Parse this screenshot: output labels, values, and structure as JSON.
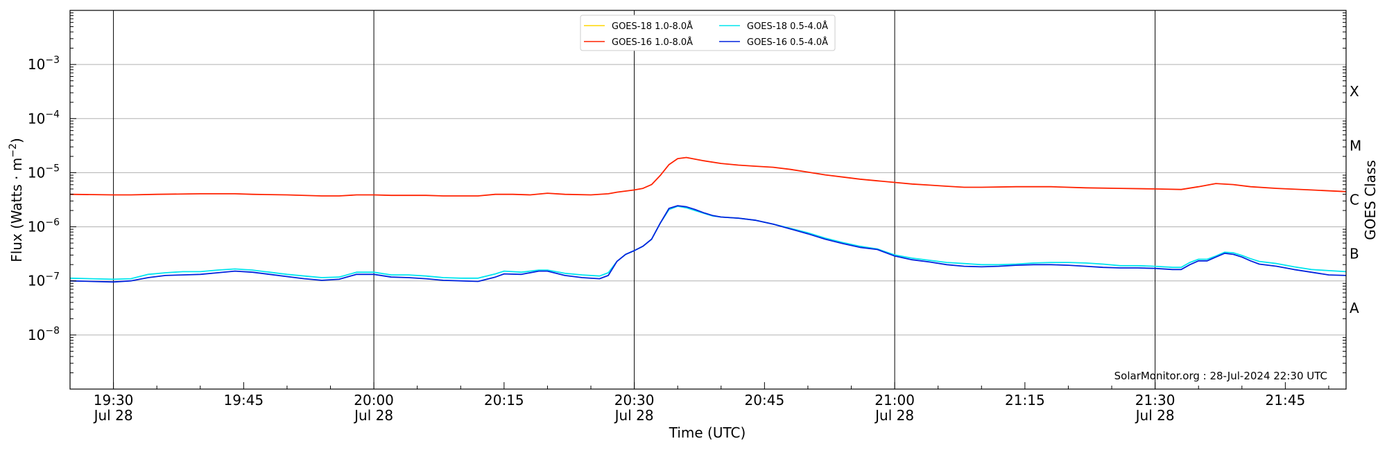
{
  "chart_data": {
    "type": "line",
    "xlabel": "Time (UTC)",
    "ylabel_main": "Flux (Watts · m",
    "ylabel_exp": "−2",
    "ylabel_close": ")",
    "right_label": "GOES Class",
    "annotation": "SolarMonitor.org : 28-Jul-2024 22:30 UTC",
    "x_range_minutes": [
      1165,
      1312
    ],
    "y_log_range": [
      -9,
      -2
    ],
    "log_scale": true,
    "grid": "horizontal at each decade, vertical at each half hour",
    "legend_placement": "top-center",
    "y_ticks": [
      {
        "exp": -8,
        "base": "10",
        "sup": "−8"
      },
      {
        "exp": -7,
        "base": "10",
        "sup": "−7"
      },
      {
        "exp": -6,
        "base": "10",
        "sup": "−6"
      },
      {
        "exp": -5,
        "base": "10",
        "sup": "−5"
      },
      {
        "exp": -4,
        "base": "10",
        "sup": "−4"
      },
      {
        "exp": -3,
        "base": "10",
        "sup": "−3"
      }
    ],
    "x_ticks": [
      {
        "t": 1170,
        "time": "19:30",
        "date": "Jul 28"
      },
      {
        "t": 1185,
        "time": "19:45",
        "date": ""
      },
      {
        "t": 1200,
        "time": "20:00",
        "date": "Jul 28"
      },
      {
        "t": 1215,
        "time": "20:15",
        "date": ""
      },
      {
        "t": 1230,
        "time": "20:30",
        "date": "Jul 28"
      },
      {
        "t": 1245,
        "time": "20:45",
        "date": ""
      },
      {
        "t": 1260,
        "time": "21:00",
        "date": "Jul 28"
      },
      {
        "t": 1275,
        "time": "21:15",
        "date": ""
      },
      {
        "t": 1290,
        "time": "21:30",
        "date": "Jul 28"
      },
      {
        "t": 1305,
        "time": "21:45",
        "date": ""
      }
    ],
    "goes_classes": [
      {
        "label": "X",
        "exp": -3.5
      },
      {
        "label": "M",
        "exp": -4.5
      },
      {
        "label": "C",
        "exp": -5.5
      },
      {
        "label": "B",
        "exp": -6.5
      },
      {
        "label": "A",
        "exp": -7.5
      }
    ],
    "series": [
      {
        "name": "GOES-18 1.0-8.0Å",
        "color": "#ffd700",
        "points": []
      },
      {
        "name": "GOES-18 0.5-4.0Å",
        "color": "#00e5ee",
        "points": [
          [
            1165,
            -6.95
          ],
          [
            1170,
            -6.97
          ],
          [
            1172,
            -6.96
          ],
          [
            1174,
            -6.88
          ],
          [
            1176,
            -6.85
          ],
          [
            1178,
            -6.83
          ],
          [
            1180,
            -6.83
          ],
          [
            1182,
            -6.8
          ],
          [
            1184,
            -6.78
          ],
          [
            1186,
            -6.8
          ],
          [
            1188,
            -6.84
          ],
          [
            1190,
            -6.88
          ],
          [
            1192,
            -6.91
          ],
          [
            1194,
            -6.94
          ],
          [
            1196,
            -6.93
          ],
          [
            1198,
            -6.84
          ],
          [
            1200,
            -6.84
          ],
          [
            1202,
            -6.89
          ],
          [
            1204,
            -6.89
          ],
          [
            1206,
            -6.91
          ],
          [
            1208,
            -6.94
          ],
          [
            1210,
            -6.95
          ],
          [
            1212,
            -6.95
          ],
          [
            1214,
            -6.87
          ],
          [
            1215,
            -6.82
          ],
          [
            1217,
            -6.84
          ],
          [
            1219,
            -6.8
          ],
          [
            1220,
            -6.8
          ],
          [
            1222,
            -6.86
          ],
          [
            1224,
            -6.89
          ],
          [
            1226,
            -6.91
          ],
          [
            1227,
            -6.85
          ],
          [
            1228,
            -6.64
          ],
          [
            1229,
            -6.51
          ],
          [
            1230,
            -6.44
          ],
          [
            1231,
            -6.36
          ],
          [
            1232,
            -6.23
          ],
          [
            1233,
            -5.93
          ],
          [
            1234,
            -5.68
          ],
          [
            1235,
            -5.62
          ],
          [
            1236,
            -5.65
          ],
          [
            1237,
            -5.7
          ],
          [
            1238,
            -5.75
          ],
          [
            1239,
            -5.8
          ],
          [
            1240,
            -5.82
          ],
          [
            1242,
            -5.84
          ],
          [
            1244,
            -5.88
          ],
          [
            1246,
            -5.95
          ],
          [
            1248,
            -6.03
          ],
          [
            1250,
            -6.11
          ],
          [
            1252,
            -6.21
          ],
          [
            1254,
            -6.29
          ],
          [
            1256,
            -6.36
          ],
          [
            1258,
            -6.41
          ],
          [
            1260,
            -6.52
          ],
          [
            1262,
            -6.58
          ],
          [
            1264,
            -6.62
          ],
          [
            1266,
            -6.66
          ],
          [
            1268,
            -6.68
          ],
          [
            1270,
            -6.7
          ],
          [
            1272,
            -6.7
          ],
          [
            1274,
            -6.69
          ],
          [
            1276,
            -6.67
          ],
          [
            1278,
            -6.66
          ],
          [
            1280,
            -6.66
          ],
          [
            1282,
            -6.67
          ],
          [
            1284,
            -6.69
          ],
          [
            1286,
            -6.72
          ],
          [
            1288,
            -6.72
          ],
          [
            1290,
            -6.73
          ],
          [
            1292,
            -6.75
          ],
          [
            1293,
            -6.75
          ],
          [
            1294,
            -6.66
          ],
          [
            1295,
            -6.6
          ],
          [
            1296,
            -6.6
          ],
          [
            1297,
            -6.54
          ],
          [
            1298,
            -6.47
          ],
          [
            1299,
            -6.48
          ],
          [
            1300,
            -6.53
          ],
          [
            1301,
            -6.59
          ],
          [
            1302,
            -6.64
          ],
          [
            1304,
            -6.68
          ],
          [
            1306,
            -6.74
          ],
          [
            1308,
            -6.79
          ],
          [
            1310,
            -6.81
          ],
          [
            1312,
            -6.83
          ]
        ]
      },
      {
        "name": "GOES-16 1.0-8.0Å",
        "color": "#ff2200",
        "points": [
          [
            1165,
            -5.4
          ],
          [
            1170,
            -5.41
          ],
          [
            1172,
            -5.41
          ],
          [
            1175,
            -5.4
          ],
          [
            1180,
            -5.39
          ],
          [
            1184,
            -5.39
          ],
          [
            1186,
            -5.4
          ],
          [
            1190,
            -5.41
          ],
          [
            1194,
            -5.43
          ],
          [
            1196,
            -5.43
          ],
          [
            1198,
            -5.41
          ],
          [
            1200,
            -5.41
          ],
          [
            1202,
            -5.42
          ],
          [
            1206,
            -5.42
          ],
          [
            1208,
            -5.43
          ],
          [
            1212,
            -5.43
          ],
          [
            1214,
            -5.4
          ],
          [
            1216,
            -5.4
          ],
          [
            1218,
            -5.41
          ],
          [
            1220,
            -5.38
          ],
          [
            1222,
            -5.4
          ],
          [
            1225,
            -5.41
          ],
          [
            1227,
            -5.39
          ],
          [
            1228,
            -5.36
          ],
          [
            1230,
            -5.32
          ],
          [
            1231,
            -5.29
          ],
          [
            1232,
            -5.22
          ],
          [
            1233,
            -5.05
          ],
          [
            1234,
            -4.85
          ],
          [
            1235,
            -4.74
          ],
          [
            1236,
            -4.72
          ],
          [
            1238,
            -4.78
          ],
          [
            1240,
            -4.83
          ],
          [
            1242,
            -4.86
          ],
          [
            1244,
            -4.88
          ],
          [
            1246,
            -4.9
          ],
          [
            1248,
            -4.94
          ],
          [
            1250,
            -4.99
          ],
          [
            1252,
            -5.04
          ],
          [
            1254,
            -5.08
          ],
          [
            1256,
            -5.12
          ],
          [
            1258,
            -5.15
          ],
          [
            1260,
            -5.18
          ],
          [
            1262,
            -5.21
          ],
          [
            1264,
            -5.23
          ],
          [
            1266,
            -5.25
          ],
          [
            1268,
            -5.27
          ],
          [
            1270,
            -5.27
          ],
          [
            1274,
            -5.26
          ],
          [
            1278,
            -5.26
          ],
          [
            1282,
            -5.28
          ],
          [
            1286,
            -5.29
          ],
          [
            1290,
            -5.3
          ],
          [
            1293,
            -5.31
          ],
          [
            1295,
            -5.26
          ],
          [
            1297,
            -5.2
          ],
          [
            1299,
            -5.22
          ],
          [
            1301,
            -5.26
          ],
          [
            1304,
            -5.29
          ],
          [
            1308,
            -5.32
          ],
          [
            1312,
            -5.35
          ]
        ]
      },
      {
        "name": "GOES-16 0.5-4.0Å",
        "color": "#0022dd",
        "points": [
          [
            1165,
            -7.0
          ],
          [
            1170,
            -7.02
          ],
          [
            1172,
            -7.0
          ],
          [
            1174,
            -6.94
          ],
          [
            1176,
            -6.9
          ],
          [
            1178,
            -6.89
          ],
          [
            1180,
            -6.88
          ],
          [
            1182,
            -6.85
          ],
          [
            1184,
            -6.82
          ],
          [
            1186,
            -6.84
          ],
          [
            1188,
            -6.88
          ],
          [
            1190,
            -6.92
          ],
          [
            1192,
            -6.96
          ],
          [
            1194,
            -6.99
          ],
          [
            1196,
            -6.97
          ],
          [
            1198,
            -6.88
          ],
          [
            1200,
            -6.88
          ],
          [
            1202,
            -6.93
          ],
          [
            1204,
            -6.94
          ],
          [
            1206,
            -6.96
          ],
          [
            1208,
            -6.99
          ],
          [
            1210,
            -7.0
          ],
          [
            1212,
            -7.01
          ],
          [
            1214,
            -6.93
          ],
          [
            1215,
            -6.87
          ],
          [
            1217,
            -6.88
          ],
          [
            1219,
            -6.82
          ],
          [
            1220,
            -6.82
          ],
          [
            1222,
            -6.9
          ],
          [
            1224,
            -6.94
          ],
          [
            1226,
            -6.96
          ],
          [
            1227,
            -6.9
          ],
          [
            1228,
            -6.64
          ],
          [
            1229,
            -6.51
          ],
          [
            1230,
            -6.44
          ],
          [
            1231,
            -6.36
          ],
          [
            1232,
            -6.23
          ],
          [
            1233,
            -5.93
          ],
          [
            1234,
            -5.66
          ],
          [
            1235,
            -5.61
          ],
          [
            1236,
            -5.63
          ],
          [
            1237,
            -5.68
          ],
          [
            1238,
            -5.74
          ],
          [
            1239,
            -5.79
          ],
          [
            1240,
            -5.82
          ],
          [
            1242,
            -5.84
          ],
          [
            1244,
            -5.88
          ],
          [
            1246,
            -5.95
          ],
          [
            1248,
            -6.04
          ],
          [
            1250,
            -6.13
          ],
          [
            1252,
            -6.23
          ],
          [
            1254,
            -6.31
          ],
          [
            1256,
            -6.38
          ],
          [
            1258,
            -6.42
          ],
          [
            1260,
            -6.54
          ],
          [
            1262,
            -6.61
          ],
          [
            1264,
            -6.65
          ],
          [
            1266,
            -6.7
          ],
          [
            1268,
            -6.73
          ],
          [
            1270,
            -6.74
          ],
          [
            1272,
            -6.73
          ],
          [
            1274,
            -6.71
          ],
          [
            1276,
            -6.7
          ],
          [
            1278,
            -6.7
          ],
          [
            1280,
            -6.71
          ],
          [
            1282,
            -6.73
          ],
          [
            1284,
            -6.75
          ],
          [
            1286,
            -6.76
          ],
          [
            1288,
            -6.76
          ],
          [
            1290,
            -6.77
          ],
          [
            1292,
            -6.79
          ],
          [
            1293,
            -6.79
          ],
          [
            1294,
            -6.7
          ],
          [
            1295,
            -6.63
          ],
          [
            1296,
            -6.63
          ],
          [
            1297,
            -6.56
          ],
          [
            1298,
            -6.49
          ],
          [
            1299,
            -6.51
          ],
          [
            1300,
            -6.56
          ],
          [
            1301,
            -6.63
          ],
          [
            1302,
            -6.69
          ],
          [
            1304,
            -6.73
          ],
          [
            1306,
            -6.79
          ],
          [
            1308,
            -6.84
          ],
          [
            1310,
            -6.89
          ],
          [
            1312,
            -6.9
          ]
        ]
      }
    ],
    "legend": [
      {
        "name": "GOES-18 1.0-8.0Å",
        "color": "#ffd700"
      },
      {
        "name": "GOES-18 0.5-4.0Å",
        "color": "#00e5ee"
      },
      {
        "name": "GOES-16 1.0-8.0Å",
        "color": "#ff2200"
      },
      {
        "name": "GOES-16 0.5-4.0Å",
        "color": "#0022dd"
      }
    ]
  }
}
